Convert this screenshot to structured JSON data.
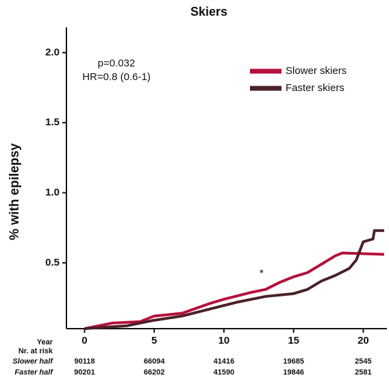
{
  "chart_data": {
    "type": "line",
    "title": "Skiers",
    "ylabel": "% with epilepsy",
    "xlabel": "Year",
    "xlim": [
      -1.3,
      21.7
    ],
    "ylim": [
      0.03,
      2.18
    ],
    "xticks": [
      0,
      5,
      10,
      15,
      20
    ],
    "yticks": [
      0.5,
      {
        "value": 1.0,
        "label": "1.0"
      },
      1.5,
      {
        "value": 2.0,
        "label": "2.0"
      }
    ],
    "legend": "upper right",
    "series": [
      {
        "name": "Slower skiers",
        "color": "#b5103c",
        "x": [
          0,
          2,
          4,
          5,
          7,
          9,
          10,
          12,
          13,
          14,
          15,
          16,
          17,
          18,
          18.5,
          21.5
        ],
        "values": [
          0.03,
          0.07,
          0.08,
          0.12,
          0.14,
          0.21,
          0.24,
          0.29,
          0.31,
          0.36,
          0.4,
          0.43,
          0.49,
          0.55,
          0.57,
          0.56
        ]
      },
      {
        "name": "Faster skiers",
        "color": "#4a2127",
        "x": [
          0,
          3,
          5,
          7,
          9,
          11,
          13,
          15,
          16,
          17,
          18,
          19,
          19.5,
          20,
          20.7,
          20.8,
          21.5
        ],
        "values": [
          0.03,
          0.05,
          0.09,
          0.12,
          0.17,
          0.22,
          0.26,
          0.28,
          0.31,
          0.37,
          0.41,
          0.46,
          0.52,
          0.65,
          0.67,
          0.73,
          0.73
        ]
      }
    ],
    "annotations": [
      {
        "text": "p=0.032"
      },
      {
        "text": "HR=0.8 (0.6-1)"
      },
      {
        "text": "*",
        "x": 12.7,
        "y": 0.42
      }
    ],
    "risk_table": {
      "title": "Nr. at risk",
      "rows": [
        {
          "name": "Slower half",
          "values": [
            "90118",
            "66094",
            "41416",
            "19685",
            "2545"
          ]
        },
        {
          "name": "Faster half",
          "values": [
            "90201",
            "66202",
            "41590",
            "19846",
            "2581"
          ]
        }
      ]
    }
  }
}
